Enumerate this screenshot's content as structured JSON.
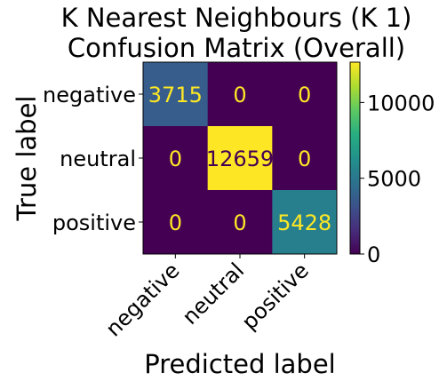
{
  "chart_data": {
    "type": "heatmap",
    "title_lines": [
      "K Nearest Neighbours (K 1)",
      "Confusion Matrix (Overall)"
    ],
    "xlabel": "Predicted label",
    "ylabel": "True label",
    "x_categories": [
      "negative",
      "neutral",
      "positive"
    ],
    "y_categories": [
      "negative",
      "neutral",
      "positive"
    ],
    "values": [
      [
        3715,
        0,
        0
      ],
      [
        0,
        12659,
        0
      ],
      [
        0,
        0,
        5428
      ]
    ],
    "colormap": "viridis",
    "colorbar": {
      "range": [
        0,
        12659
      ],
      "ticks": [
        0,
        5000,
        10000
      ],
      "tick_labels": [
        "0",
        "5000",
        "10000"
      ]
    },
    "text_colors": {
      "light": "#fde725",
      "dark": "#440154"
    }
  }
}
